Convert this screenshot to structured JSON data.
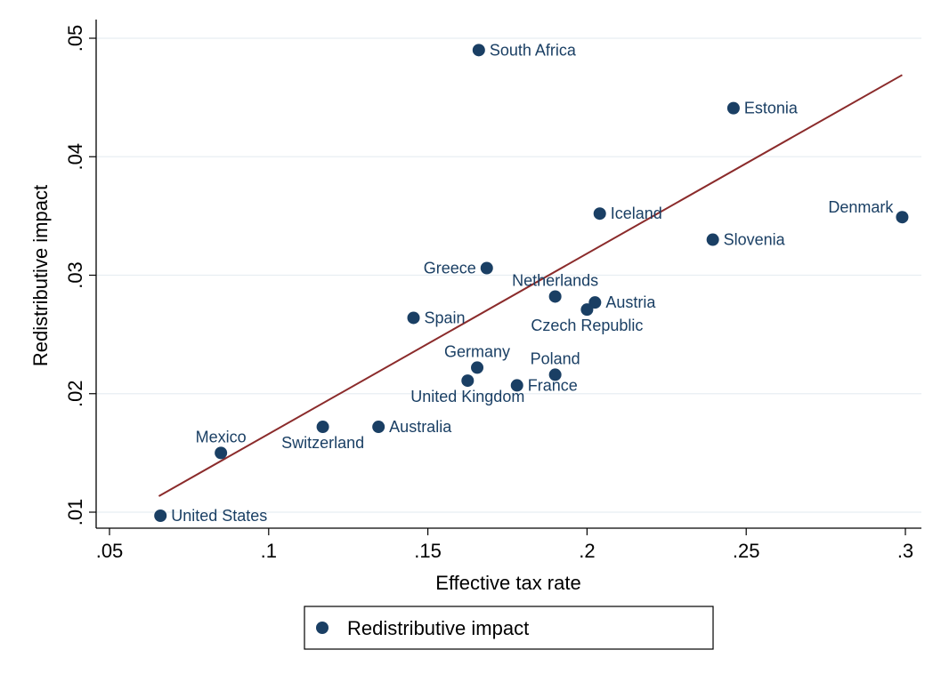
{
  "chart_data": {
    "type": "scatter",
    "xlabel": "Effective tax rate",
    "ylabel": "Redistributive impact",
    "xlim": [
      0.05,
      0.3
    ],
    "ylim": [
      0.01,
      0.05
    ],
    "x_ticks": [
      0.05,
      0.1,
      0.15,
      0.2,
      0.25,
      0.3
    ],
    "x_tick_labels": [
      ".05",
      ".1",
      ".15",
      ".2",
      ".25",
      ".3"
    ],
    "y_ticks": [
      0.01,
      0.02,
      0.03,
      0.04,
      0.05
    ],
    "y_tick_labels": [
      ".01",
      ".02",
      ".03",
      ".04",
      ".05"
    ],
    "grid": "horizontal",
    "legend": {
      "position": "bottom",
      "entries": [
        "Redistributive impact"
      ]
    },
    "colors": {
      "points": "#1a3f64",
      "labels": "#1a3f64",
      "fit_line": "#8b2b2b",
      "grid": "#e8eef2"
    },
    "series": [
      {
        "name": "Redistributive impact",
        "points": [
          {
            "label": "South Africa",
            "x": 0.166,
            "y": 0.049,
            "pos": "right"
          },
          {
            "label": "Estonia",
            "x": 0.246,
            "y": 0.0441,
            "pos": "right"
          },
          {
            "label": "Iceland",
            "x": 0.204,
            "y": 0.0352,
            "pos": "right"
          },
          {
            "label": "Denmark",
            "x": 0.299,
            "y": 0.0349,
            "pos": "upper-left"
          },
          {
            "label": "Slovenia",
            "x": 0.2395,
            "y": 0.033,
            "pos": "right"
          },
          {
            "label": "Greece",
            "x": 0.1685,
            "y": 0.0306,
            "pos": "left"
          },
          {
            "label": "Netherlands",
            "x": 0.19,
            "y": 0.0282,
            "pos": "above"
          },
          {
            "label": "Austria",
            "x": 0.2025,
            "y": 0.0277,
            "pos": "right"
          },
          {
            "label": "Czech Republic",
            "x": 0.2,
            "y": 0.0271,
            "pos": "below"
          },
          {
            "label": "Spain",
            "x": 0.1455,
            "y": 0.0264,
            "pos": "right"
          },
          {
            "label": "Germany",
            "x": 0.1655,
            "y": 0.0222,
            "pos": "above"
          },
          {
            "label": "Poland",
            "x": 0.19,
            "y": 0.0216,
            "pos": "above-right"
          },
          {
            "label": "United Kingdom",
            "x": 0.1625,
            "y": 0.0211,
            "pos": "below"
          },
          {
            "label": "France",
            "x": 0.178,
            "y": 0.0207,
            "pos": "right"
          },
          {
            "label": "Switzerland",
            "x": 0.117,
            "y": 0.0172,
            "pos": "below"
          },
          {
            "label": "Australia",
            "x": 0.1345,
            "y": 0.0172,
            "pos": "right"
          },
          {
            "label": "Mexico",
            "x": 0.085,
            "y": 0.015,
            "pos": "above"
          },
          {
            "label": "United States",
            "x": 0.066,
            "y": 0.0097,
            "pos": "right"
          }
        ]
      }
    ],
    "fit_line": {
      "x": [
        0.0655,
        0.299
      ],
      "y": [
        0.01135,
        0.0469
      ]
    }
  }
}
